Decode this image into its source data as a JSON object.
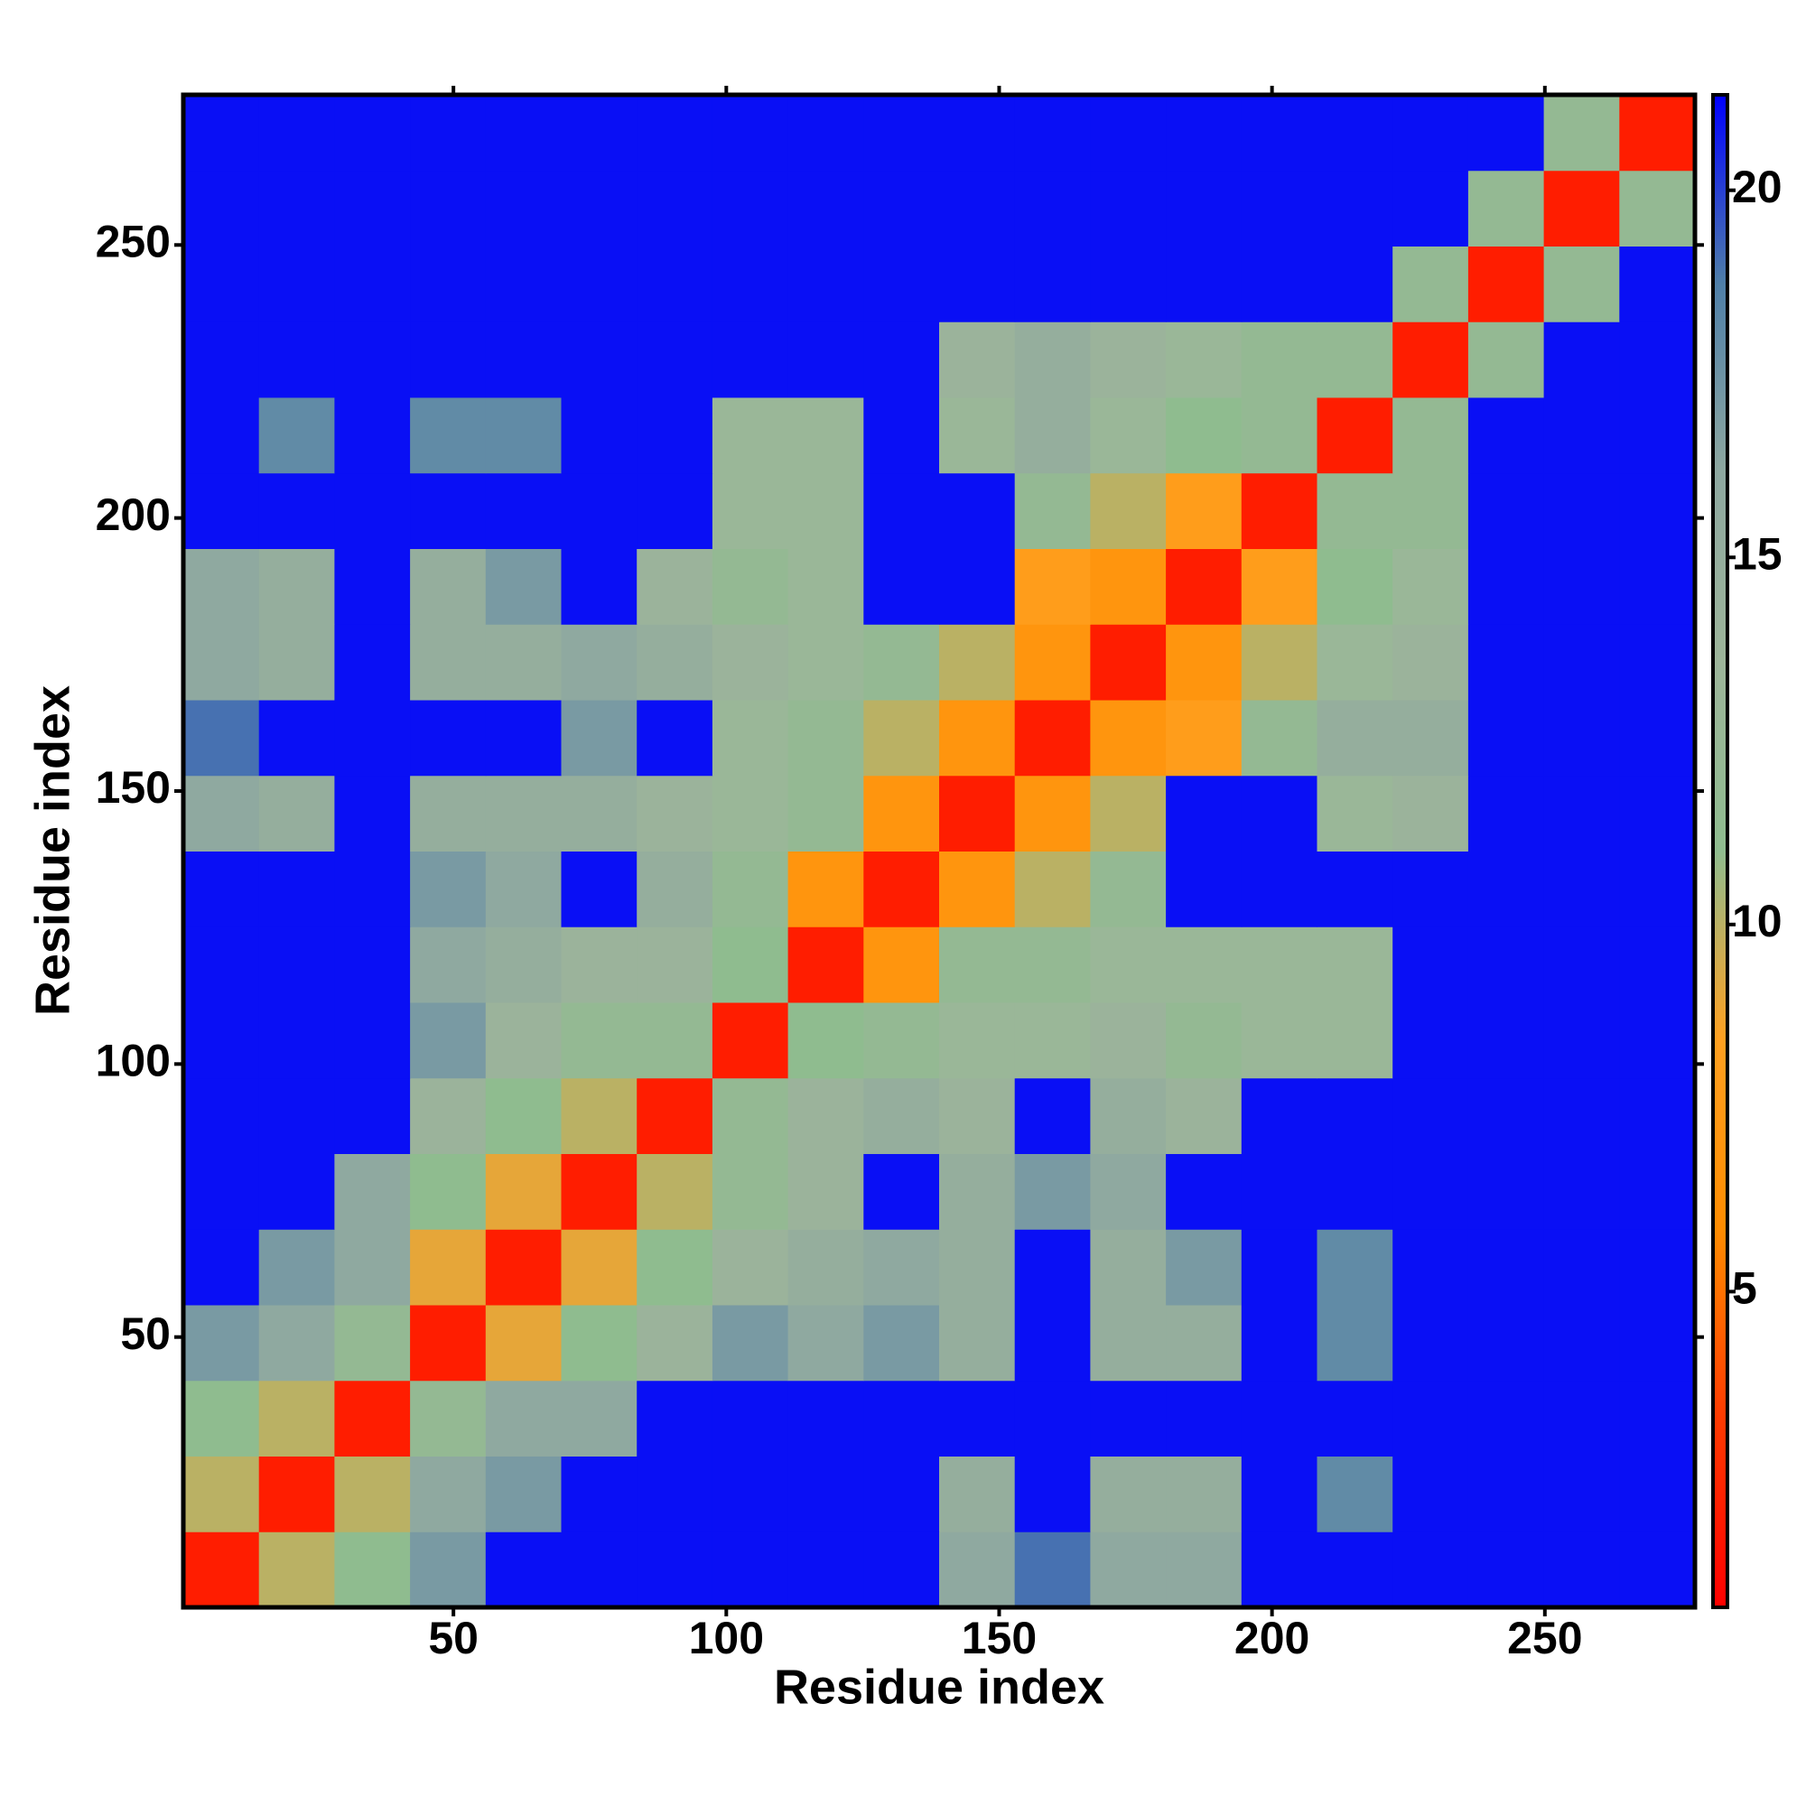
{
  "chart_data": {
    "type": "heatmap",
    "x_label": "Residue index",
    "y_label": "Residue index",
    "xlim": [
      0.5,
      277.5
    ],
    "ylim": [
      0.5,
      277.5
    ],
    "xticks": [
      50,
      100,
      150,
      200,
      250
    ],
    "yticks": [
      50,
      100,
      150,
      200,
      250
    ],
    "bins": [
      0.5,
      14.35,
      28.2,
      42.05,
      55.9,
      69.75,
      83.6,
      97.45,
      111.3,
      125.15,
      139,
      152.85,
      166.7,
      180.55,
      194.4,
      208.25,
      222.1,
      235.95,
      249.8,
      263.65,
      277.5
    ],
    "zlim": [
      0.7,
      21.3
    ],
    "zticks": [
      5,
      10,
      15,
      20
    ],
    "colormap": [
      "#ff0000",
      "#ff3a00",
      "#ff8c00",
      "#ffa020",
      "#8fbc8f",
      "#9db59a",
      "#8ea8a0",
      "#4f7fa8",
      "#0000ff"
    ],
    "z": [
      [
        2,
        10,
        11,
        17,
        21,
        21,
        21,
        21,
        21,
        21,
        16,
        19,
        16,
        16,
        21,
        21,
        21,
        21,
        21,
        21
      ],
      [
        10,
        2,
        10,
        16,
        17,
        21,
        21,
        21,
        21,
        21,
        15,
        21,
        15,
        15,
        21,
        18,
        21,
        21,
        21,
        21
      ],
      [
        11,
        10,
        2,
        12,
        16,
        16,
        21,
        21,
        21,
        21,
        21,
        21,
        21,
        21,
        21,
        21,
        21,
        21,
        21,
        21
      ],
      [
        17,
        16,
        12,
        2,
        9,
        11,
        14,
        17,
        16,
        17,
        15,
        21,
        15,
        15,
        21,
        18,
        21,
        21,
        21,
        21
      ],
      [
        21,
        17,
        16,
        9,
        2,
        9,
        11,
        14,
        15,
        16,
        15,
        21,
        15,
        17,
        21,
        18,
        21,
        21,
        21,
        21
      ],
      [
        21,
        21,
        16,
        11,
        9,
        2,
        10,
        12,
        14,
        21,
        15,
        17,
        16,
        21,
        21,
        21,
        21,
        21,
        21,
        21
      ],
      [
        21,
        21,
        21,
        14,
        11,
        10,
        2,
        12,
        14,
        15,
        14,
        21,
        15,
        14,
        21,
        21,
        21,
        21,
        21,
        21
      ],
      [
        21,
        21,
        21,
        17,
        14,
        12,
        12,
        2,
        11,
        12,
        13,
        13,
        14,
        12,
        13,
        13,
        21,
        21,
        21,
        21
      ],
      [
        21,
        21,
        21,
        16,
        15,
        14,
        14,
        11,
        2,
        7,
        12,
        12,
        13,
        13,
        13,
        13,
        21,
        21,
        21,
        21
      ],
      [
        21,
        21,
        21,
        17,
        16,
        21,
        15,
        12,
        7,
        2,
        7,
        10,
        12,
        21,
        21,
        21,
        21,
        21,
        21,
        21
      ],
      [
        16,
        15,
        21,
        15,
        15,
        15,
        14,
        13,
        12,
        7,
        2,
        7,
        10,
        21,
        21,
        13,
        14,
        21,
        21,
        21
      ],
      [
        19,
        21,
        21,
        21,
        21,
        17,
        21,
        13,
        12,
        10,
        7,
        2,
        7,
        8,
        12,
        15,
        15,
        21,
        21,
        21
      ],
      [
        16,
        15,
        21,
        15,
        15,
        16,
        15,
        14,
        13,
        12,
        10,
        7,
        2,
        7,
        10,
        13,
        14,
        21,
        21,
        21
      ],
      [
        16,
        15,
        21,
        15,
        17,
        21,
        14,
        12,
        13,
        21,
        21,
        8,
        7,
        2,
        8,
        11,
        13,
        21,
        21,
        21
      ],
      [
        21,
        21,
        21,
        21,
        21,
        21,
        21,
        13,
        13,
        21,
        21,
        12,
        10,
        8,
        2,
        12,
        12,
        21,
        21,
        21
      ],
      [
        21,
        18,
        21,
        18,
        18,
        21,
        21,
        13,
        13,
        21,
        13,
        15,
        13,
        11,
        12,
        2,
        12,
        21,
        21,
        21
      ],
      [
        21,
        21,
        21,
        21,
        21,
        21,
        21,
        21,
        21,
        21,
        14,
        15,
        14,
        13,
        12,
        12,
        2,
        12,
        21,
        21
      ],
      [
        21,
        21,
        21,
        21,
        21,
        21,
        21,
        21,
        21,
        21,
        21,
        21,
        21,
        21,
        21,
        21,
        12,
        2,
        12,
        21
      ],
      [
        21,
        21,
        21,
        21,
        21,
        21,
        21,
        21,
        21,
        21,
        21,
        21,
        21,
        21,
        21,
        21,
        21,
        12,
        2,
        12
      ],
      [
        21,
        21,
        21,
        21,
        21,
        21,
        21,
        21,
        21,
        21,
        21,
        21,
        21,
        21,
        21,
        21,
        21,
        21,
        12,
        2
      ]
    ]
  }
}
